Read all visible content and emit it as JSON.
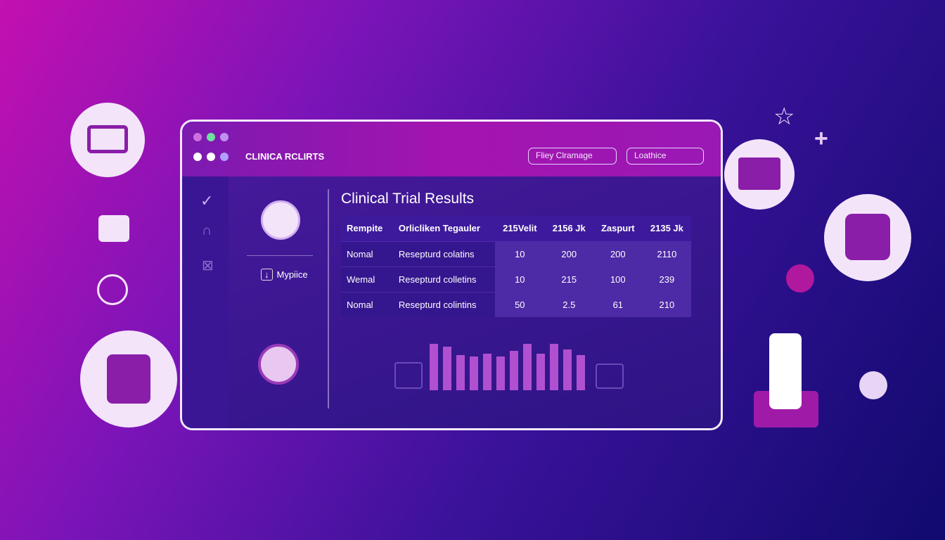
{
  "app": {
    "title": "CLINICA RCLIRTS",
    "buttons": [
      "Fliey Clramage",
      "Loathice"
    ]
  },
  "sidebar": {
    "item": "Mypiice"
  },
  "content": {
    "heading": "Clinical Trial Results"
  },
  "table": {
    "header": [
      "Rempite",
      "Orlicliken Tegauler",
      "215Velit",
      "2156 Jk",
      "Zaspurt",
      "2135 Jk"
    ],
    "rows": [
      [
        "Nomal",
        "Resepturd colatins",
        10,
        200,
        200,
        2110
      ],
      [
        "Wemal",
        "Resepturd colletins",
        10,
        215,
        100,
        239
      ],
      [
        "Nomal",
        "Resepturd colintins",
        50,
        2.5,
        61,
        210
      ]
    ]
  }
}
